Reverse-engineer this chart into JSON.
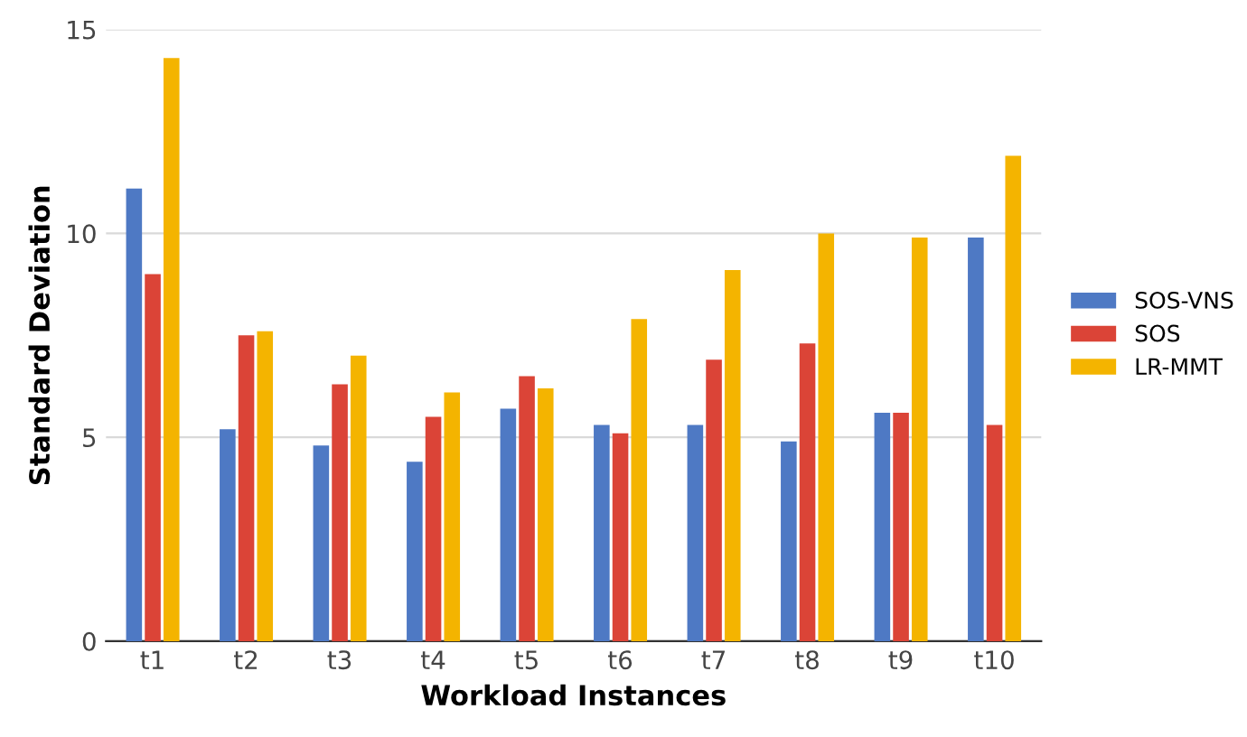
{
  "chart_data": {
    "type": "bar",
    "xlabel": "Workload Instances",
    "ylabel": "Standard Deviation",
    "categories": [
      "t1",
      "t2",
      "t3",
      "t4",
      "t5",
      "t6",
      "t7",
      "t8",
      "t9",
      "t10"
    ],
    "series": [
      {
        "name": "SOS-VNS",
        "color": "#4e79c4",
        "values": [
          11.1,
          5.2,
          4.8,
          4.4,
          5.7,
          5.3,
          5.3,
          4.9,
          5.6,
          9.9
        ]
      },
      {
        "name": "SOS",
        "color": "#db4437",
        "values": [
          9.0,
          7.5,
          6.3,
          5.5,
          6.5,
          5.1,
          6.9,
          7.3,
          5.6,
          5.3
        ]
      },
      {
        "name": "LR-MMT",
        "color": "#f4b400",
        "values": [
          14.3,
          7.6,
          7.0,
          6.1,
          6.2,
          7.9,
          9.1,
          10.0,
          9.9,
          11.9
        ]
      }
    ],
    "ylim": [
      0,
      15
    ],
    "yticks": [
      0,
      5,
      10,
      15
    ],
    "grid": "y",
    "legend": "right"
  }
}
